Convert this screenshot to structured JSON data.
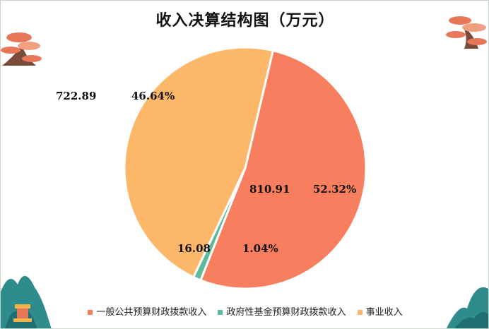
{
  "chart_data": {
    "type": "pie",
    "title": "收入决算结构图（万元）",
    "slices": [
      {
        "name": "一般公共预算财政拨款收入",
        "value": 810.91,
        "percent_label": "52.32%",
        "value_label": "810.91",
        "color": "#F77E5E"
      },
      {
        "name": "政府性基金预算财政拨款收入",
        "value": 16.08,
        "percent_label": "1.04%",
        "value_label": "16.08",
        "color": "#5FB99B"
      },
      {
        "name": "事业收入",
        "value": 722.89,
        "percent_label": "46.64%",
        "value_label": "722.89",
        "color": "#FDB769"
      }
    ],
    "legend_position": "bottom"
  },
  "decorations": {
    "pine_color": "#E8775A",
    "mountain_color": "#2E8C8C"
  }
}
